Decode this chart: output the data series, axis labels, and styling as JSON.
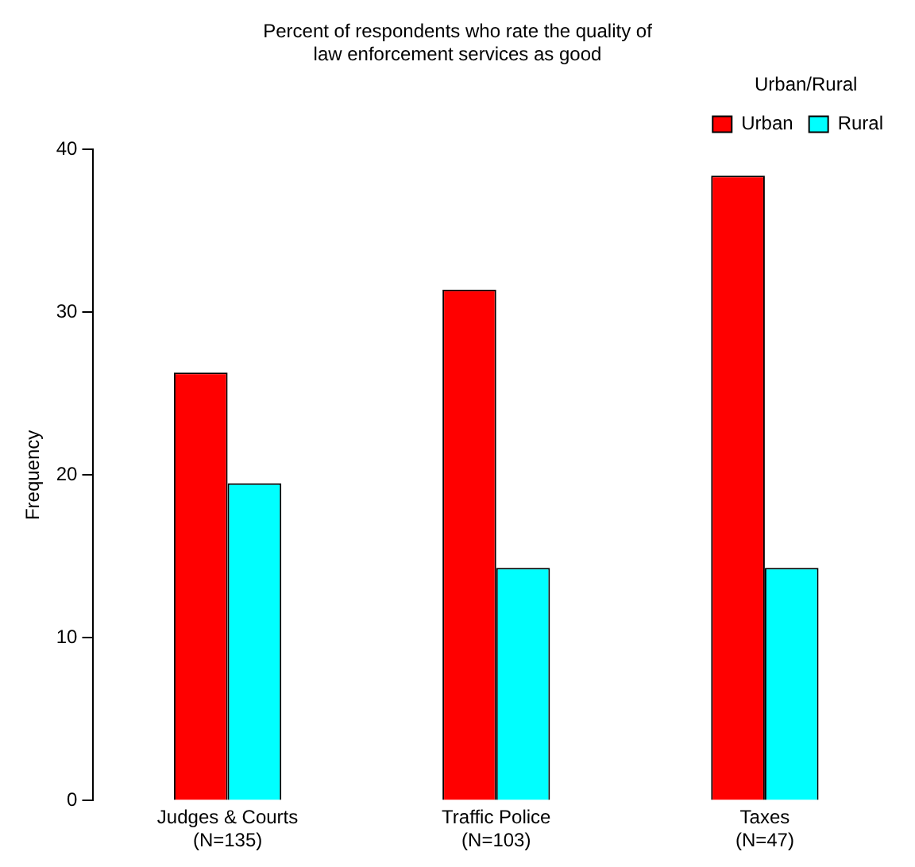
{
  "chart_data": {
    "type": "bar",
    "title": "Percent of respondents who rate the quality of\nlaw enforcement services as good",
    "ylabel": "Frequency",
    "legend_title": "Urban/Rural",
    "categories": [
      "Judges & Courts\n(N=135)",
      "Traffic Police\n(N=103)",
      "Taxes\n(N=47)"
    ],
    "series": [
      {
        "name": "Urban",
        "color": "#ff0000",
        "values": [
          26.3,
          31.4,
          38.4
        ]
      },
      {
        "name": "Rural",
        "color": "#00ffff",
        "values": [
          19.5,
          14.3,
          14.3
        ]
      }
    ],
    "ylim": [
      0,
      40
    ],
    "yticks": [
      0,
      10,
      20,
      30,
      40
    ],
    "grid": false,
    "legend": "top right"
  }
}
